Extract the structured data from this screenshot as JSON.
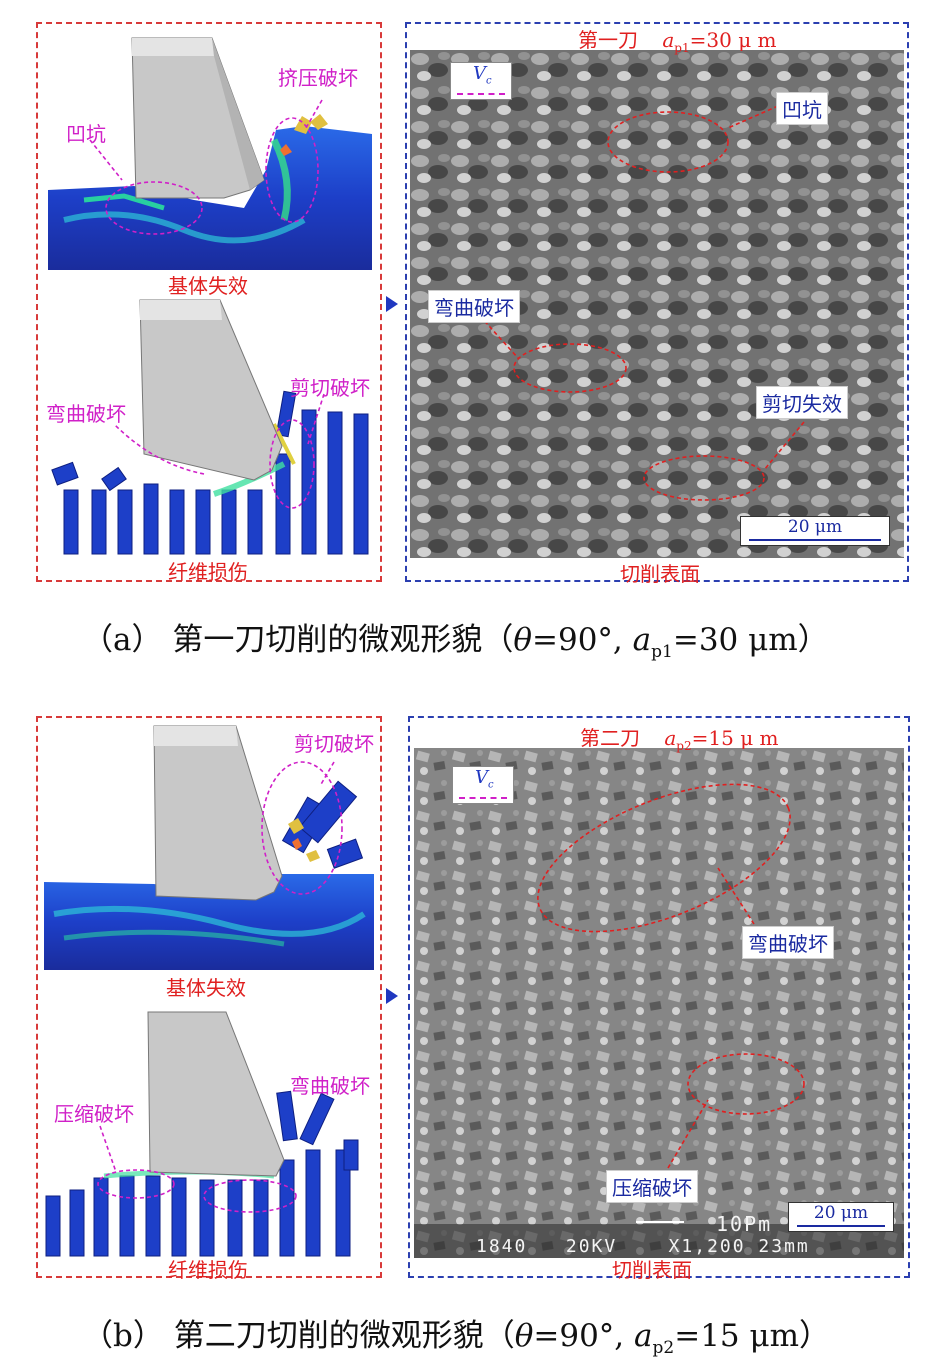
{
  "panel_a": {
    "sim_top_labels": {
      "pit": "凹坑",
      "crush": "挤压破坏",
      "matrix": "基体失效"
    },
    "sim_bottom_labels": {
      "bend": "弯曲破坏",
      "shear": "剪切破坏",
      "fiber": "纤维损伤"
    },
    "sem": {
      "title": "第一刀",
      "ap_var": "a",
      "ap_sub": "p1",
      "ap_value": "=30 μ m",
      "vc_var": "V",
      "vc_sub": "c",
      "pit": "凹坑",
      "bend": "弯曲破坏",
      "shear": "剪切失效",
      "scale": "20 μm",
      "surface": "切削表面"
    },
    "caption": {
      "index": "（a）",
      "text": "第一刀切削的微观形貌（",
      "theta": "θ",
      "theta_value": "=90°, ",
      "ap_var": "a",
      "ap_sub": "p1",
      "ap_value": "=30 μm）"
    }
  },
  "panel_b": {
    "sim_top_labels": {
      "shear": "剪切破坏",
      "matrix": "基体失效"
    },
    "sim_bottom_labels": {
      "compress": "压缩破坏",
      "bend": "弯曲破坏",
      "fiber": "纤维损伤"
    },
    "sem": {
      "title": "第二刀",
      "ap_var": "a",
      "ap_sub": "p2",
      "ap_value": "=15 μ m",
      "vc_var": "V",
      "vc_sub": "c",
      "bend": "弯曲破坏",
      "compress": "压缩破坏",
      "scale": "20 μm",
      "readout_top": "10Pm",
      "readout_bottom": "1840   20KV    X1,200 23mm",
      "surface": "切削表面"
    },
    "caption": {
      "index": "（b）",
      "text": "第二刀切削的微观形貌（",
      "theta": "θ",
      "theta_value": "=90°, ",
      "ap_var": "a",
      "ap_sub": "p2",
      "ap_value": "=15 μm）"
    }
  },
  "colors": {
    "red_frame": "#d83a3a",
    "blue_frame": "#2b3fb0",
    "annotation_magenta": "#d020c8",
    "annotation_red": "#e02020",
    "fe_blue": "#1d3fc8",
    "tool_gray": "#c8c8c8"
  }
}
